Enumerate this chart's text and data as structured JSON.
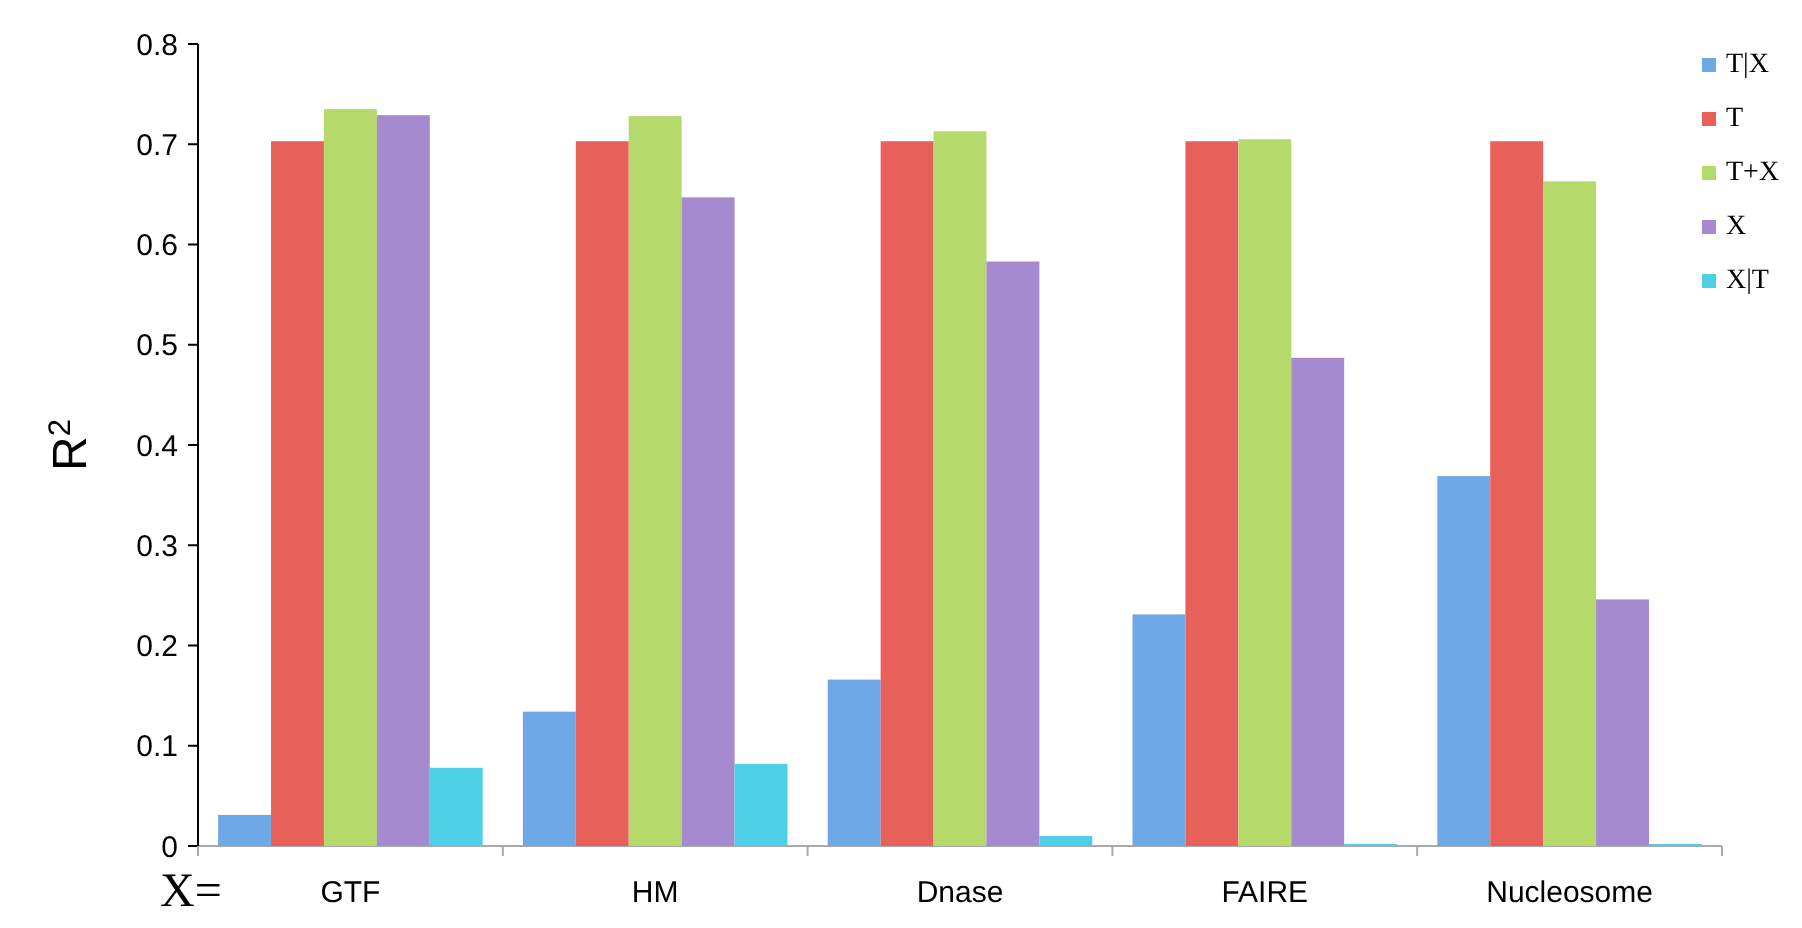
{
  "chart_data": {
    "type": "bar",
    "ylabel": "R$^{2}$",
    "categories": [
      "GTF",
      "HM",
      "Dnase",
      "FAIRE",
      "Nucleosome"
    ],
    "series": [
      {
        "name": "T|X",
        "color": "#6fa8e6",
        "values": [
          0.031,
          0.134,
          0.166,
          0.231,
          0.369
        ]
      },
      {
        "name": "T",
        "color": "#e8605a",
        "values": [
          0.703,
          0.703,
          0.703,
          0.703,
          0.703
        ]
      },
      {
        "name": "T+X",
        "color": "#b5d96a",
        "values": [
          0.735,
          0.728,
          0.713,
          0.705,
          0.663
        ]
      },
      {
        "name": "X",
        "color": "#a58ad0",
        "values": [
          0.729,
          0.647,
          0.583,
          0.487,
          0.246
        ]
      },
      {
        "name": "X|T",
        "color": "#4dd0e6",
        "values": [
          0.078,
          0.082,
          0.01,
          0.002,
          0.002
        ]
      }
    ],
    "ylim": [
      0,
      0.8
    ],
    "yticks": [
      0,
      0.1,
      0.2,
      0.3,
      0.4,
      0.5,
      0.6,
      0.7,
      0.8
    ],
    "grid": false,
    "legend": "top right",
    "annotations": [
      "X="
    ]
  }
}
